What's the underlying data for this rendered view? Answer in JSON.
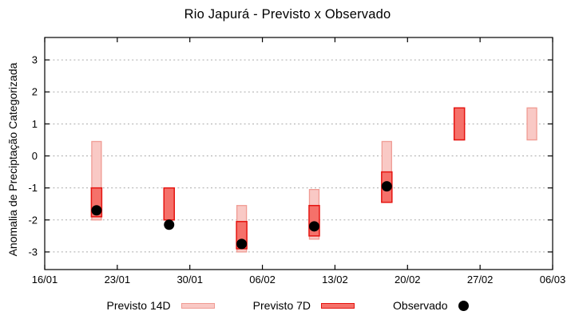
{
  "page": {
    "background": "#ffffff"
  },
  "chart_data": {
    "type": "bar",
    "subtype": "range-bars-with-observed-points",
    "title": "Rio Japurá - Previsto x Observado",
    "xlabel": "",
    "ylabel": "Anomalia de Preciptação Categorizada",
    "x_tick_labels": [
      "16/01",
      "23/01",
      "30/01",
      "06/02",
      "13/02",
      "20/02",
      "27/02",
      "06/03"
    ],
    "x_tick_days": [
      0,
      7,
      14,
      21,
      28,
      35,
      42,
      49
    ],
    "xlim_days": [
      0,
      49
    ],
    "y_ticks": [
      3,
      2,
      1,
      0,
      -1,
      -2,
      -3
    ],
    "ylim": [
      -3.55,
      3.7
    ],
    "grid": "horizontal-dashed",
    "styles": {
      "previsto14": {
        "fill": "#f9c9c5",
        "stroke": "#f09b93"
      },
      "previsto7": {
        "fill": "#f5716a",
        "stroke": "#e51410"
      },
      "observado": {
        "fill": "#000000"
      },
      "grid_color": "#aaaaaa",
      "axis_color": "#000000"
    },
    "points": [
      {
        "date": "21/01",
        "day": 5,
        "previsto14": [
          -2.0,
          0.45
        ],
        "previsto7": [
          -1.9,
          -1.0
        ],
        "observado": -1.7
      },
      {
        "date": "28/01",
        "day": 12,
        "previsto14": null,
        "previsto7": [
          -2.0,
          -1.0
        ],
        "observado": -2.15
      },
      {
        "date": "04/02",
        "day": 19,
        "previsto14": [
          -3.0,
          -1.55
        ],
        "previsto7": [
          -2.9,
          -2.05
        ],
        "observado": -2.75
      },
      {
        "date": "11/02",
        "day": 26,
        "previsto14": [
          -2.6,
          -1.05
        ],
        "previsto7": [
          -2.5,
          -1.55
        ],
        "observado": -2.2
      },
      {
        "date": "18/02",
        "day": 33,
        "previsto14": [
          -1.45,
          0.45
        ],
        "previsto7": [
          -1.45,
          -0.5
        ],
        "observado": -0.95
      },
      {
        "date": "25/02",
        "day": 40,
        "previsto14": null,
        "previsto7": [
          0.5,
          1.5
        ],
        "observado": null
      },
      {
        "date": "04/03",
        "day": 47,
        "previsto14": [
          0.5,
          1.5
        ],
        "previsto7": null,
        "observado": null
      }
    ],
    "legend": {
      "position": "bottom-outside",
      "items": [
        {
          "label": "Previsto 14D",
          "series": "previsto14",
          "swatch": "box"
        },
        {
          "label": "Previsto 7D",
          "series": "previsto7",
          "swatch": "box"
        },
        {
          "label": "Observado",
          "series": "observado",
          "swatch": "dot"
        }
      ]
    }
  }
}
